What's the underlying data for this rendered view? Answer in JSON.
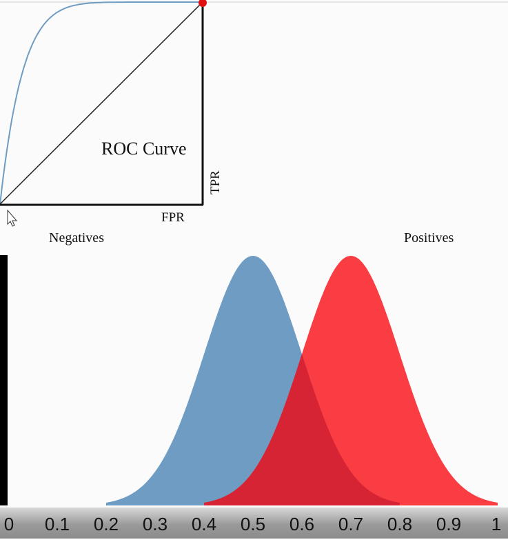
{
  "roc": {
    "title": "ROC Curve",
    "x_label": "FPR",
    "y_label": "TPR"
  },
  "distributions": {
    "negatives_label": "Negatives",
    "positives_label": "Positives"
  },
  "colors": {
    "negatives": "#6f9cc3",
    "positives": "#f9282e",
    "roc_curve": "#6f9cc3",
    "operating_point": "#e01010"
  },
  "chart_data": [
    {
      "type": "line",
      "title": "ROC Curve",
      "xlabel": "FPR",
      "ylabel": "TPR",
      "xlim": [
        0,
        1
      ],
      "ylim": [
        0,
        1
      ],
      "series": [],
      "operating_point": {
        "x": 1,
        "y": 1
      }
    },
    {
      "type": "area",
      "x_ticks": [
        "0",
        "0.1",
        "0.2",
        "0.3",
        "0.4",
        "0.5",
        "0.6",
        "0.7",
        "0.8",
        "0.9",
        "1"
      ],
      "xlim": [
        0,
        1
      ],
      "series": [
        {
          "name": "Negatives",
          "mean": 0.5,
          "support": [
            0.2,
            0.8
          ]
        },
        {
          "name": "Positives",
          "mean": 0.7,
          "support": [
            0.4,
            1.0
          ]
        }
      ]
    }
  ]
}
